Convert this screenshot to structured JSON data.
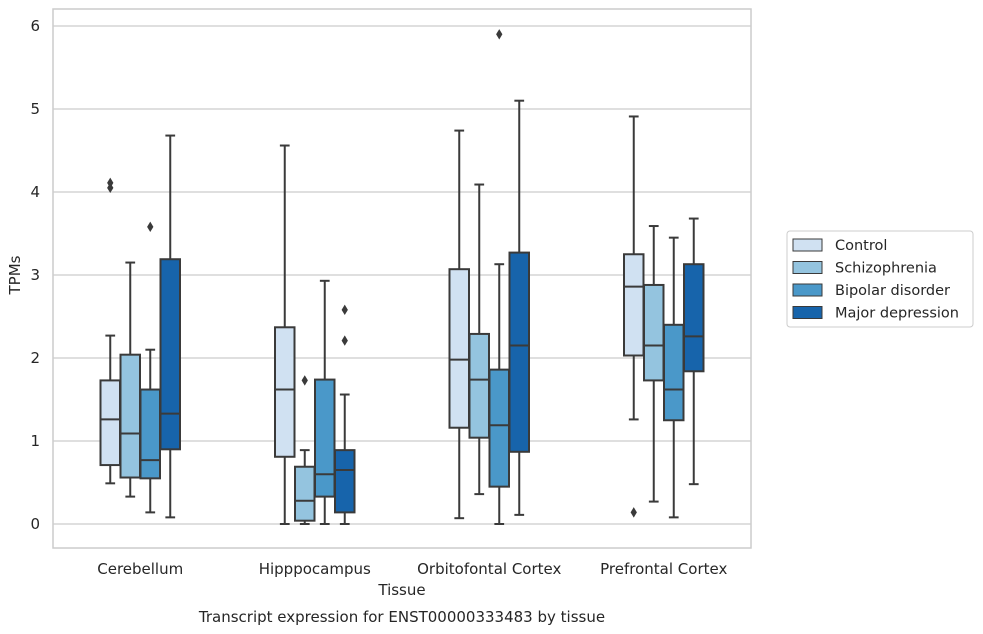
{
  "chart_data": {
    "type": "boxplot",
    "caption": "Transcript expression for ENST00000333483 by tissue",
    "xlabel": "Tissue",
    "ylabel": "TPMs",
    "ylim": [
      -0.28,
      6.2
    ],
    "yticks": [
      "0",
      "1",
      "2",
      "3",
      "4",
      "5",
      "6"
    ],
    "grid": true,
    "legend_position": "right",
    "categories": [
      "Cerebellum",
      "Hipppocampus",
      "Orbitofontal Cortex",
      "Prefrontal Cortex"
    ],
    "series": [
      {
        "name": "Control",
        "color": "#d0e1f2",
        "boxes": [
          {
            "whislo": 0.49,
            "q1": 0.71,
            "med": 1.26,
            "q3": 1.73,
            "whishi": 2.27,
            "fliers": []
          },
          {
            "whislo": 0.0,
            "q1": 0.81,
            "med": 1.62,
            "q3": 2.37,
            "whishi": 4.56,
            "fliers": []
          },
          {
            "whislo": 0.07,
            "q1": 1.16,
            "med": 1.98,
            "q3": 3.07,
            "whishi": 4.74,
            "fliers": []
          },
          {
            "whislo": 1.26,
            "q1": 2.03,
            "med": 2.86,
            "q3": 3.25,
            "whishi": 4.91,
            "fliers": [
              0.14
            ]
          }
        ]
      },
      {
        "name": "Schizophrenia",
        "color": "#94c4df",
        "boxes": [
          {
            "whislo": 0.33,
            "q1": 0.56,
            "med": 1.09,
            "q3": 2.04,
            "whishi": 3.15,
            "fliers": []
          },
          {
            "whislo": 0.0,
            "q1": 0.04,
            "med": 0.28,
            "q3": 0.69,
            "whishi": 0.89,
            "fliers": [
              1.73
            ]
          },
          {
            "whislo": 0.36,
            "q1": 1.04,
            "med": 1.74,
            "q3": 2.29,
            "whishi": 4.09,
            "fliers": []
          },
          {
            "whislo": 0.27,
            "q1": 1.73,
            "med": 2.15,
            "q3": 2.88,
            "whishi": 3.59,
            "fliers": []
          }
        ]
      },
      {
        "name": "Bipolar disorder",
        "color": "#4a98c9",
        "boxes": [
          {
            "whislo": 0.14,
            "q1": 0.55,
            "med": 0.77,
            "q3": 1.62,
            "whishi": 2.1,
            "fliers": [
              3.58
            ]
          },
          {
            "whislo": 0.0,
            "q1": 0.33,
            "med": 0.6,
            "q3": 1.74,
            "whishi": 2.93,
            "fliers": []
          },
          {
            "whislo": 0.0,
            "q1": 0.45,
            "med": 1.19,
            "q3": 1.86,
            "whishi": 3.13,
            "fliers": [
              5.9
            ]
          },
          {
            "whislo": 0.08,
            "q1": 1.25,
            "med": 1.62,
            "q3": 2.4,
            "whishi": 3.45,
            "fliers": []
          }
        ]
      },
      {
        "name": "Major depression",
        "color": "#1764ab",
        "boxes": [
          {
            "whislo": 0.08,
            "q1": 0.9,
            "med": 1.33,
            "q3": 3.19,
            "whishi": 4.68,
            "fliers": []
          },
          {
            "whislo": 0.0,
            "q1": 0.14,
            "med": 0.65,
            "q3": 0.89,
            "whishi": 1.56,
            "fliers": [
              2.21,
              2.58
            ]
          },
          {
            "whislo": 0.11,
            "q1": 0.87,
            "med": 2.15,
            "q3": 3.27,
            "whishi": 5.1,
            "fliers": []
          },
          {
            "whislo": 0.48,
            "q1": 1.84,
            "med": 2.26,
            "q3": 3.13,
            "whishi": 3.68,
            "fliers": []
          }
        ]
      }
    ],
    "extra_fliers": [
      {
        "category": 0,
        "series": 0,
        "values": [
          4.05,
          4.11
        ]
      }
    ]
  }
}
